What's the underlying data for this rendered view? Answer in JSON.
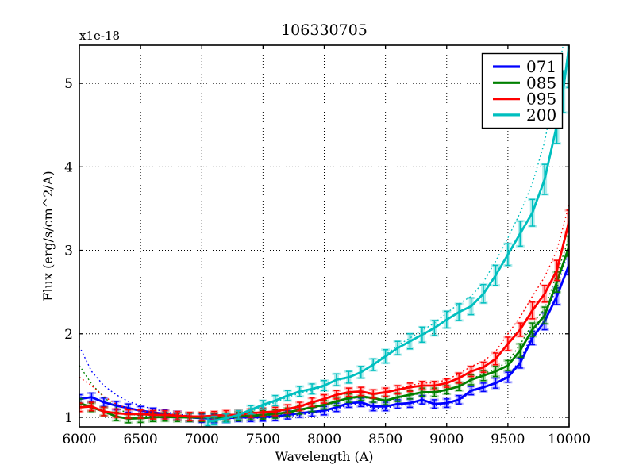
{
  "figure": {
    "title": "106330705",
    "offset_text": "x1e-18",
    "background": "#ffffff"
  },
  "chart_data": {
    "type": "line",
    "title": "106330705",
    "xlabel": "Wavelength (A)",
    "ylabel": "Flux (erg/s/cm^2/A)",
    "y_offset_text": "x1e-18",
    "xlim": [
      6000,
      10000
    ],
    "ylim": [
      0.886,
      5.457
    ],
    "xticks": [
      6000,
      6500,
      7000,
      7500,
      8000,
      8500,
      9000,
      9500,
      10000
    ],
    "yticks": [
      1,
      2,
      3,
      4,
      5
    ],
    "grid": true,
    "grid_color": "#000000",
    "legend_position": "upper right",
    "axis_color": "#000000",
    "series": [
      {
        "name": "071",
        "color": "#0000ff",
        "x": [
          6000,
          6100,
          6200,
          6300,
          6400,
          6500,
          6600,
          6700,
          6800,
          6900,
          7000,
          7100,
          7200,
          7300,
          7400,
          7500,
          7600,
          7700,
          7800,
          7900,
          8000,
          8100,
          8200,
          8300,
          8400,
          8500,
          8600,
          8700,
          8800,
          8900,
          9000,
          9100,
          9200,
          9300,
          9400,
          9500,
          9600,
          9700,
          9800,
          9900,
          10000
        ],
        "y": [
          1.22,
          1.24,
          1.18,
          1.14,
          1.11,
          1.08,
          1.06,
          1.04,
          1.02,
          1.0,
          0.99,
          0.985,
          0.99,
          1.0,
          1.0,
          1.005,
          1.01,
          1.03,
          1.05,
          1.065,
          1.08,
          1.12,
          1.17,
          1.18,
          1.13,
          1.13,
          1.16,
          1.17,
          1.21,
          1.16,
          1.17,
          1.21,
          1.32,
          1.36,
          1.41,
          1.48,
          1.65,
          1.95,
          2.15,
          2.45,
          2.83
        ],
        "err": [
          0.05,
          0.05,
          0.05,
          0.05,
          0.05,
          0.05,
          0.05,
          0.05,
          0.05,
          0.05,
          0.05,
          0.05,
          0.05,
          0.05,
          0.05,
          0.05,
          0.05,
          0.05,
          0.05,
          0.05,
          0.05,
          0.05,
          0.05,
          0.05,
          0.05,
          0.05,
          0.05,
          0.05,
          0.05,
          0.05,
          0.05,
          0.05,
          0.05,
          0.05,
          0.06,
          0.06,
          0.06,
          0.08,
          0.1,
          0.1,
          0.12
        ],
        "dotted_y": [
          1.85,
          1.55,
          1.38,
          1.27,
          1.19,
          1.14,
          1.1,
          1.07,
          1.04,
          1.02,
          1.0,
          0.98,
          0.98,
          0.99,
          0.99,
          0.99,
          1.0,
          1.01,
          1.03,
          1.05,
          1.06,
          1.1,
          1.15,
          1.16,
          1.11,
          1.11,
          1.14,
          1.15,
          1.19,
          1.14,
          1.15,
          1.19,
          1.31,
          1.35,
          1.41,
          1.5,
          1.68,
          2.0,
          2.22,
          2.55,
          3.0
        ]
      },
      {
        "name": "085",
        "color": "#008000",
        "x": [
          6000,
          6100,
          6200,
          6300,
          6400,
          6500,
          6600,
          6700,
          6800,
          6900,
          7000,
          7100,
          7200,
          7300,
          7400,
          7500,
          7600,
          7700,
          7800,
          7900,
          8000,
          8100,
          8200,
          8300,
          8400,
          8500,
          8600,
          8700,
          8800,
          8900,
          9000,
          9100,
          9200,
          9300,
          9400,
          9500,
          9600,
          9700,
          9800,
          9900,
          10000
        ],
        "y": [
          1.17,
          1.12,
          1.07,
          1.01,
          0.985,
          0.99,
          1.0,
          1.005,
          1.0,
          1.0,
          1.0,
          1.0,
          1.0,
          1.01,
          1.02,
          1.03,
          1.04,
          1.06,
          1.09,
          1.12,
          1.15,
          1.19,
          1.23,
          1.25,
          1.23,
          1.2,
          1.24,
          1.27,
          1.3,
          1.3,
          1.33,
          1.37,
          1.45,
          1.5,
          1.55,
          1.62,
          1.8,
          2.05,
          2.22,
          2.62,
          3.05
        ],
        "err": [
          0.05,
          0.05,
          0.05,
          0.05,
          0.05,
          0.05,
          0.05,
          0.05,
          0.05,
          0.05,
          0.05,
          0.05,
          0.05,
          0.05,
          0.05,
          0.05,
          0.05,
          0.05,
          0.05,
          0.05,
          0.05,
          0.05,
          0.05,
          0.05,
          0.05,
          0.05,
          0.05,
          0.05,
          0.05,
          0.05,
          0.05,
          0.05,
          0.06,
          0.06,
          0.06,
          0.06,
          0.08,
          0.08,
          0.1,
          0.12,
          0.12
        ],
        "dotted_y": [
          1.62,
          1.4,
          1.24,
          1.12,
          1.04,
          1.02,
          1.01,
          1.01,
          1.0,
          0.99,
          0.99,
          0.99,
          0.99,
          1.0,
          1.01,
          1.02,
          1.03,
          1.05,
          1.08,
          1.11,
          1.14,
          1.18,
          1.22,
          1.24,
          1.22,
          1.19,
          1.23,
          1.26,
          1.29,
          1.29,
          1.32,
          1.37,
          1.46,
          1.52,
          1.58,
          1.67,
          1.87,
          2.12,
          2.3,
          2.72,
          3.15
        ]
      },
      {
        "name": "095",
        "color": "#ff0000",
        "x": [
          6000,
          6100,
          6200,
          6300,
          6400,
          6500,
          6600,
          6700,
          6800,
          6900,
          7000,
          7100,
          7200,
          7300,
          7400,
          7500,
          7600,
          7700,
          7800,
          7900,
          8000,
          8100,
          8200,
          8300,
          8400,
          8500,
          8600,
          8700,
          8800,
          8900,
          9000,
          9100,
          9200,
          9300,
          9400,
          9500,
          9600,
          9700,
          9800,
          9900,
          10000
        ],
        "y": [
          1.12,
          1.13,
          1.07,
          1.05,
          1.04,
          1.04,
          1.03,
          1.03,
          1.02,
          1.01,
          1.01,
          1.02,
          1.03,
          1.03,
          1.05,
          1.06,
          1.07,
          1.1,
          1.13,
          1.18,
          1.22,
          1.27,
          1.3,
          1.31,
          1.28,
          1.3,
          1.33,
          1.36,
          1.38,
          1.38,
          1.41,
          1.47,
          1.55,
          1.6,
          1.7,
          1.88,
          2.05,
          2.28,
          2.48,
          2.76,
          3.35
        ],
        "err": [
          0.05,
          0.05,
          0.05,
          0.05,
          0.05,
          0.05,
          0.05,
          0.05,
          0.05,
          0.05,
          0.05,
          0.05,
          0.05,
          0.05,
          0.05,
          0.05,
          0.05,
          0.05,
          0.05,
          0.05,
          0.05,
          0.05,
          0.05,
          0.05,
          0.05,
          0.05,
          0.05,
          0.05,
          0.05,
          0.05,
          0.05,
          0.06,
          0.06,
          0.06,
          0.07,
          0.08,
          0.08,
          0.1,
          0.1,
          0.12,
          0.13
        ],
        "dotted_y": [
          1.48,
          1.38,
          1.25,
          1.16,
          1.1,
          1.08,
          1.06,
          1.05,
          1.03,
          1.02,
          1.01,
          1.02,
          1.02,
          1.02,
          1.04,
          1.05,
          1.06,
          1.09,
          1.12,
          1.17,
          1.21,
          1.26,
          1.29,
          1.3,
          1.27,
          1.3,
          1.34,
          1.38,
          1.41,
          1.41,
          1.45,
          1.52,
          1.61,
          1.67,
          1.79,
          2.0,
          2.2,
          2.45,
          2.68,
          3.0,
          3.55
        ]
      },
      {
        "name": "200",
        "color": "#00bfbf",
        "x": [
          7050,
          7100,
          7200,
          7300,
          7400,
          7500,
          7600,
          7700,
          7800,
          7900,
          8000,
          8100,
          8200,
          8300,
          8400,
          8500,
          8600,
          8700,
          8800,
          8900,
          9000,
          9100,
          9200,
          9300,
          9400,
          9500,
          9600,
          9700,
          9800,
          9900,
          9950,
          10000
        ],
        "y": [
          0.95,
          0.96,
          0.99,
          1.03,
          1.09,
          1.15,
          1.2,
          1.26,
          1.31,
          1.34,
          1.38,
          1.45,
          1.48,
          1.54,
          1.63,
          1.73,
          1.83,
          1.91,
          1.99,
          2.07,
          2.17,
          2.26,
          2.33,
          2.48,
          2.7,
          2.95,
          3.2,
          3.45,
          3.85,
          4.5,
          4.9,
          5.45
        ],
        "err": [
          0.05,
          0.05,
          0.05,
          0.05,
          0.05,
          0.05,
          0.06,
          0.06,
          0.06,
          0.06,
          0.06,
          0.07,
          0.07,
          0.07,
          0.07,
          0.08,
          0.08,
          0.09,
          0.09,
          0.09,
          0.1,
          0.1,
          0.1,
          0.11,
          0.12,
          0.13,
          0.15,
          0.16,
          0.18,
          0.22,
          0.25,
          0.5
        ],
        "dotted_y": [
          0.94,
          0.95,
          0.98,
          1.02,
          1.07,
          1.13,
          1.18,
          1.24,
          1.29,
          1.32,
          1.37,
          1.44,
          1.47,
          1.54,
          1.64,
          1.75,
          1.86,
          1.95,
          2.04,
          2.13,
          2.25,
          2.36,
          2.45,
          2.62,
          2.87,
          3.15,
          3.45,
          3.8,
          4.3,
          5.05,
          5.45,
          5.8
        ]
      }
    ]
  }
}
